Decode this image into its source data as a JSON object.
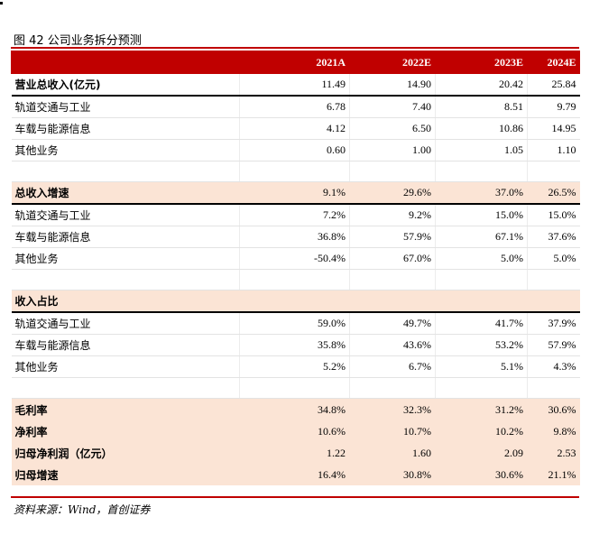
{
  "figure_title": "图 42 公司业务拆分预测",
  "columns": [
    "",
    "2021A",
    "2022E",
    "2023E",
    "2024E"
  ],
  "rows": [
    {
      "kind": "total",
      "label": "营业总收入(亿元)",
      "values": [
        "11.49",
        "14.90",
        "20.42",
        "25.84"
      ]
    },
    {
      "kind": "item",
      "label": "轨道交通与工业",
      "values": [
        "6.78",
        "7.40",
        "8.51",
        "9.79"
      ]
    },
    {
      "kind": "item",
      "label": "车载与能源信息",
      "values": [
        "4.12",
        "6.50",
        "10.86",
        "14.95"
      ]
    },
    {
      "kind": "item",
      "label": "其他业务",
      "values": [
        "0.60",
        "1.00",
        "1.05",
        "1.10"
      ]
    },
    {
      "kind": "blank",
      "label": "",
      "values": [
        "",
        "",
        "",
        ""
      ]
    },
    {
      "kind": "sec",
      "label": "总收入增速",
      "values": [
        "9.1%",
        "29.6%",
        "37.0%",
        "26.5%"
      ]
    },
    {
      "kind": "item",
      "label": "轨道交通与工业",
      "values": [
        "7.2%",
        "9.2%",
        "15.0%",
        "15.0%"
      ]
    },
    {
      "kind": "item",
      "label": "车载与能源信息",
      "values": [
        "36.8%",
        "57.9%",
        "67.1%",
        "37.6%"
      ]
    },
    {
      "kind": "item",
      "label": "其他业务",
      "values": [
        "-50.4%",
        "67.0%",
        "5.0%",
        "5.0%"
      ]
    },
    {
      "kind": "blank",
      "label": "",
      "values": [
        "",
        "",
        "",
        ""
      ]
    },
    {
      "kind": "sec",
      "label": "收入占比",
      "values": [
        "",
        "",
        "",
        ""
      ]
    },
    {
      "kind": "item",
      "label": "轨道交通与工业",
      "values": [
        "59.0%",
        "49.7%",
        "41.7%",
        "37.9%"
      ]
    },
    {
      "kind": "item",
      "label": "车载与能源信息",
      "values": [
        "35.8%",
        "43.6%",
        "53.2%",
        "57.9%"
      ]
    },
    {
      "kind": "item",
      "label": "其他业务",
      "values": [
        "5.2%",
        "6.7%",
        "5.1%",
        "4.3%"
      ]
    },
    {
      "kind": "blank",
      "label": "",
      "values": [
        "",
        "",
        "",
        ""
      ]
    },
    {
      "kind": "fin",
      "label": "毛利率",
      "values": [
        "34.8%",
        "32.3%",
        "31.2%",
        "30.6%"
      ]
    },
    {
      "kind": "fin",
      "label": "净利率",
      "values": [
        "10.6%",
        "10.7%",
        "10.2%",
        "9.8%"
      ]
    },
    {
      "kind": "fin",
      "label": "归母净利润（亿元）",
      "values": [
        "1.22",
        "1.60",
        "2.09",
        "2.53"
      ]
    },
    {
      "kind": "fin",
      "label": "归母增速",
      "values": [
        "16.4%",
        "30.8%",
        "30.6%",
        "21.1%"
      ]
    }
  ],
  "source": "资料来源：Wind，首创证券",
  "colors": {
    "header_bg": "#c00000",
    "section_bg": "#fbe4d5",
    "rule": "#c00000"
  }
}
